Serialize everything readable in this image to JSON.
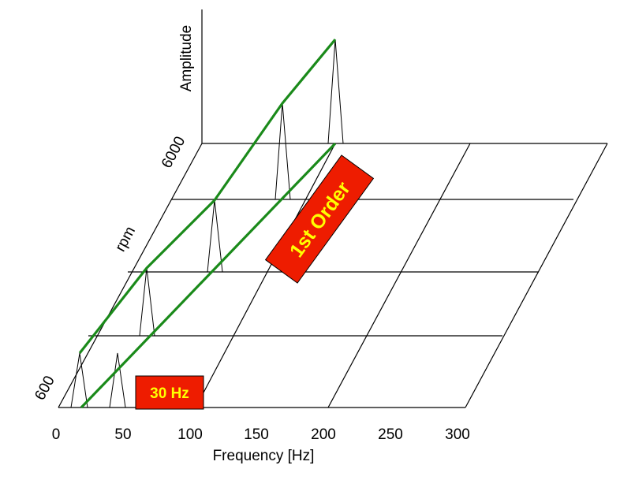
{
  "diagram": {
    "type": "waterfall",
    "x_axis": {
      "title": "Frequency [Hz]",
      "ticks": [
        "0",
        "50",
        "100",
        "150",
        "200",
        "250",
        "300"
      ]
    },
    "rpm_axis": {
      "title": "rpm",
      "low_label": "600",
      "high_label": "6000"
    },
    "amplitude_axis": {
      "title": "Amplitude"
    },
    "order_label": "1st Order",
    "freq_label": "30 Hz",
    "colors": {
      "order_line": "#1a8a1a",
      "label_box": "#ee1c00",
      "label_text": "#ffff00",
      "grid": "#000000"
    },
    "grid_levels": 5
  }
}
